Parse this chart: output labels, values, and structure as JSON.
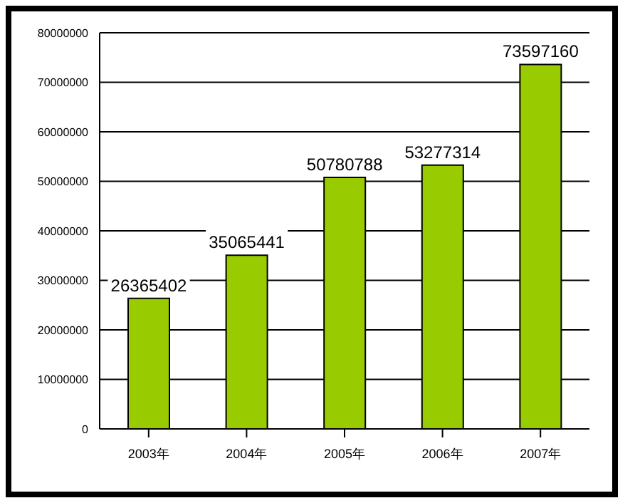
{
  "chart_data": {
    "type": "bar",
    "categories": [
      "2003年",
      "2004年",
      "2005年",
      "2006年",
      "2007年"
    ],
    "values": [
      26365402,
      35065441,
      50780788,
      53277314,
      73597160
    ],
    "color": "#99cc00",
    "ylim": [
      0,
      80000000
    ],
    "yticks": [
      0,
      10000000,
      20000000,
      30000000,
      40000000,
      50000000,
      60000000,
      70000000,
      80000000
    ],
    "grid": "y",
    "data_labels": true
  }
}
